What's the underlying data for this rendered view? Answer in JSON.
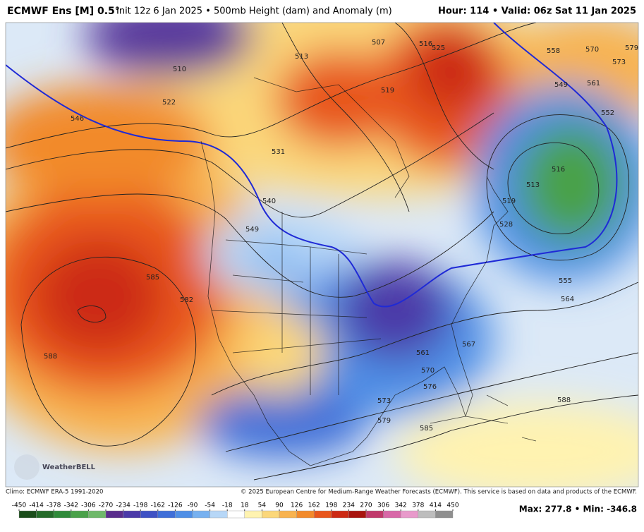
{
  "header": {
    "model": "ECMWF Ens [M] 0.5°",
    "description": "Init 12z 6 Jan 2025 • 500mb Height (dam) and Anomaly (m)",
    "valid": "Hour: 114 • Valid: 06z Sat 11 Jan 2025"
  },
  "contours": [
    "546",
    "522",
    "510",
    "531",
    "540",
    "549",
    "585",
    "582",
    "588",
    "513",
    "519",
    "507",
    "516",
    "525",
    "558",
    "570",
    "573",
    "579",
    "561",
    "552",
    "549",
    "516",
    "513",
    "519",
    "528",
    "555",
    "564",
    "567",
    "561",
    "570",
    "576",
    "573",
    "579",
    "585",
    "588"
  ],
  "footer": {
    "climo": "Climo: ECMWF ERA-5 1991-2020",
    "copyright": "© 2025 European Centre for Medium-Range Weather Forecasts (ECMWF). This service is based on data and products of the ECMWF.",
    "extremes": "Max: 277.8 • Min: -346.8",
    "logo": "WeatherBELL"
  },
  "colorbar": {
    "ticks": [
      -450,
      -414,
      -378,
      -342,
      -306,
      -270,
      -234,
      -198,
      -162,
      -126,
      -90,
      -54,
      -18,
      18,
      54,
      90,
      126,
      162,
      198,
      234,
      270,
      306,
      342,
      378,
      414,
      450
    ],
    "colors": [
      "#1b4d1b",
      "#256b2a",
      "#2f8a3a",
      "#4aa14a",
      "#6fb86a",
      "#5a2d8c",
      "#4b3aa8",
      "#3f52c4",
      "#3f6fd8",
      "#4f8fe6",
      "#77b1f0",
      "#b7d7f7",
      "#ffffff",
      "#fff3b0",
      "#fbd77a",
      "#f8b350",
      "#f28a2c",
      "#e8561c",
      "#cc2a14",
      "#a8140e",
      "#c03a6c",
      "#d868a8",
      "#e89acb",
      "#bdbdbd",
      "#8f8f8f"
    ]
  }
}
